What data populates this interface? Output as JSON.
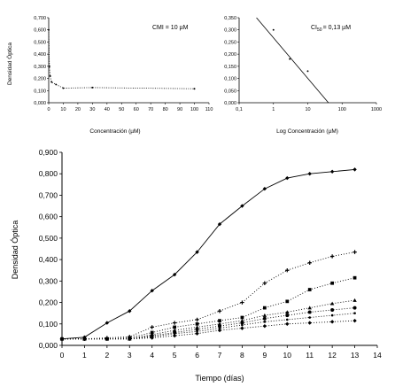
{
  "chart_data": [
    {
      "id": "cmi",
      "type": "scatter",
      "xlabel": "Concentración (µM)",
      "ylabel": "Densidad Óptica",
      "annotation": "CMI = 10 µM",
      "xlim": [
        0,
        110
      ],
      "ylim": [
        0,
        0.7
      ],
      "xticks": [
        "0",
        "10",
        "20",
        "30",
        "40",
        "50",
        "60",
        "70",
        "80",
        "90",
        "100",
        "110"
      ],
      "yticks": [
        "0,000",
        "0,100",
        "0,200",
        "0,300",
        "0,400",
        "0,500",
        "0,600",
        "0,700"
      ],
      "series": [
        {
          "x": [
            0,
            0.5,
            1,
            2,
            5,
            10,
            30,
            100
          ],
          "y": [
            0.6,
            0.3,
            0.22,
            0.17,
            0.15,
            0.12,
            0.125,
            0.115
          ],
          "line": "dotted",
          "marker": "dot"
        }
      ]
    },
    {
      "id": "ci50",
      "type": "scatter",
      "xlabel": "Log Concentración (µM)",
      "ylabel": "",
      "annotation_base": "CI",
      "annotation_sub": "50",
      "annotation_value": "= 0,13 µM",
      "xscale": "log",
      "xlim": [
        0.1,
        1000
      ],
      "ylim": [
        0,
        0.35
      ],
      "xticks": [
        "0,1",
        "1",
        "10",
        "100",
        "1000"
      ],
      "yticks": [
        "0,000",
        "0,050",
        "0,100",
        "0,150",
        "0,200",
        "0,250",
        "0,300",
        "0,350"
      ],
      "points": {
        "x": [
          1,
          3,
          10
        ],
        "y": [
          0.3,
          0.18,
          0.13
        ]
      },
      "fit_line": {
        "x": [
          0.32,
          40
        ],
        "y": [
          0.35,
          0
        ]
      }
    },
    {
      "id": "growth",
      "type": "line",
      "xlabel": "Tiempo (días)",
      "ylabel": "Densidad Óptica",
      "xlim": [
        0,
        14
      ],
      "ylim": [
        0,
        0.9
      ],
      "xticks": [
        "0",
        "1",
        "2",
        "3",
        "4",
        "5",
        "6",
        "7",
        "8",
        "9",
        "10",
        "11",
        "12",
        "13",
        "14"
      ],
      "yticks": [
        "0,000",
        "0,100",
        "0,200",
        "0,300",
        "0,400",
        "0,500",
        "0,600",
        "0,700",
        "0,800",
        "0,900"
      ],
      "x": [
        0,
        1,
        2,
        3,
        4,
        5,
        6,
        7,
        8,
        9,
        10,
        11,
        12,
        13
      ],
      "series": [
        {
          "values": [
            0.03,
            0.038,
            0.105,
            0.16,
            0.255,
            0.33,
            0.435,
            0.565,
            0.65,
            0.73,
            0.78,
            0.8,
            0.81,
            0.82
          ],
          "line": "solid",
          "marker": "diamond"
        },
        {
          "values": [
            0.03,
            0.03,
            0.035,
            0.04,
            0.085,
            0.105,
            0.12,
            0.16,
            0.2,
            0.29,
            0.35,
            0.385,
            0.415,
            0.435
          ],
          "line": "dotted",
          "marker": "plus"
        },
        {
          "values": [
            0.03,
            0.03,
            0.03,
            0.035,
            0.06,
            0.085,
            0.1,
            0.115,
            0.13,
            0.175,
            0.205,
            0.26,
            0.29,
            0.315
          ],
          "line": "dotted",
          "marker": "square"
        },
        {
          "values": [
            0.03,
            0.03,
            0.03,
            0.03,
            0.05,
            0.07,
            0.085,
            0.1,
            0.115,
            0.14,
            0.155,
            0.175,
            0.195,
            0.21
          ],
          "line": "dotted",
          "marker": "triangle"
        },
        {
          "values": [
            0.03,
            0.03,
            0.03,
            0.03,
            0.045,
            0.06,
            0.075,
            0.09,
            0.105,
            0.125,
            0.14,
            0.155,
            0.165,
            0.175
          ],
          "line": "dotted",
          "marker": "circle"
        },
        {
          "values": [
            0.03,
            0.03,
            0.03,
            0.03,
            0.04,
            0.055,
            0.065,
            0.08,
            0.095,
            0.11,
            0.12,
            0.13,
            0.14,
            0.15
          ],
          "line": "dotted",
          "marker": "dot"
        },
        {
          "values": [
            0.03,
            0.03,
            0.03,
            0.03,
            0.035,
            0.045,
            0.055,
            0.07,
            0.08,
            0.09,
            0.1,
            0.105,
            0.11,
            0.115
          ],
          "line": "dotted",
          "marker": "diamond"
        }
      ]
    }
  ]
}
